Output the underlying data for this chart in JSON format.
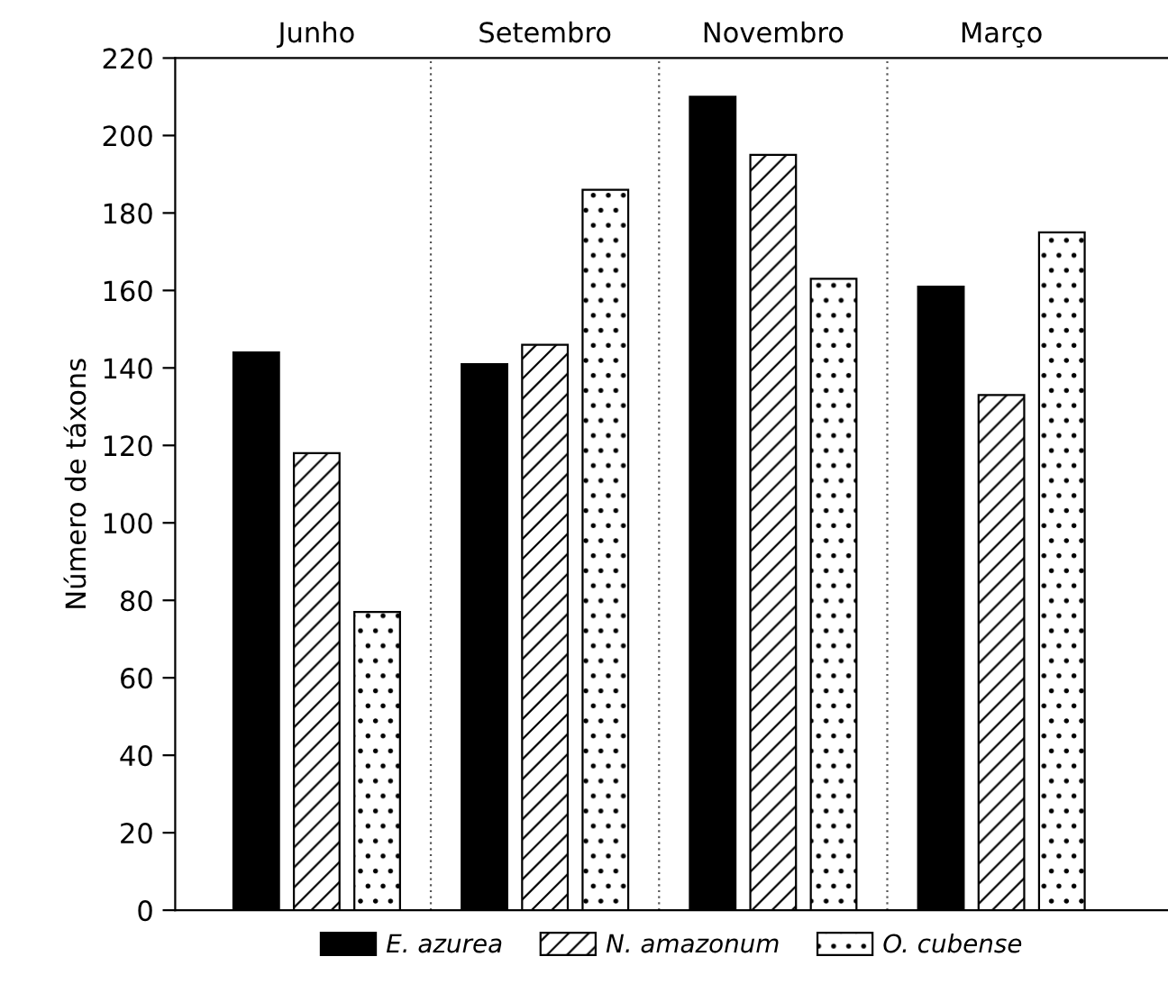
{
  "chart_data": {
    "type": "bar",
    "categories": [
      "Junho",
      "Setembro",
      "Novembro",
      "Março"
    ],
    "ylabel": "Número de táxons",
    "series": [
      {
        "name": "E. azurea",
        "color": "#000000",
        "values": [
          144,
          141,
          210,
          161
        ]
      },
      {
        "name": "N. amazonum",
        "color": "#000000",
        "values": [
          118,
          146,
          195,
          133
        ]
      },
      {
        "name": "O. cubense",
        "color": "#000000",
        "values": [
          77,
          186,
          163,
          175
        ]
      }
    ],
    "ylim": [
      0,
      220
    ],
    "yticks": [
      0,
      20,
      40,
      60,
      80,
      100,
      120,
      140,
      160,
      180,
      200,
      220
    ],
    "grid": "x",
    "legend": "bottom"
  }
}
